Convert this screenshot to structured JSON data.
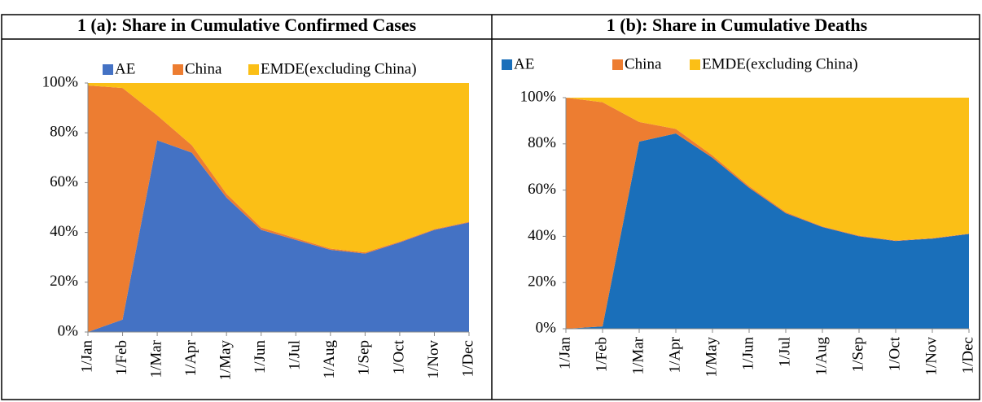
{
  "chart_data": [
    {
      "type": "area",
      "stacked": true,
      "title": "1 (a): Share in Cumulative Confirmed Cases",
      "categories": [
        "1/Jan",
        "1/Feb",
        "1/Mar",
        "1/Apr",
        "1/May",
        "1/Jun",
        "1/Jul",
        "1/Aug",
        "1/Sep",
        "1/Oct",
        "1/Nov",
        "1/Dec"
      ],
      "series": [
        {
          "name": "AE",
          "color": "#4472c4",
          "values": [
            0,
            5,
            77,
            72,
            54,
            41,
            37,
            33,
            31.5,
            36,
            41,
            44
          ]
        },
        {
          "name": "China",
          "color": "#ed7d31",
          "values": [
            99,
            93,
            10,
            3,
            1.5,
            1,
            0.7,
            0.5,
            0.5,
            0.3,
            0.3,
            0.3
          ]
        },
        {
          "name": "EMDE(excluding China)",
          "color": "#fbbf16",
          "values": [
            1,
            2,
            13,
            25,
            44.5,
            58,
            62.3,
            66.5,
            68,
            63.7,
            58.7,
            55.7
          ]
        }
      ],
      "ylim": [
        0,
        100
      ],
      "yticks": [
        {
          "value": 0,
          "label": "0%"
        },
        {
          "value": 20,
          "label": "20%"
        },
        {
          "value": 40,
          "label": "40%"
        },
        {
          "value": 60,
          "label": "60%"
        },
        {
          "value": 80,
          "label": "80%"
        },
        {
          "value": 100,
          "label": "100%"
        }
      ],
      "legend": "top"
    },
    {
      "type": "area",
      "stacked": true,
      "title": "1 (b): Share in Cumulative Deaths",
      "categories": [
        "1/Jan",
        "1/Feb",
        "1/Mar",
        "1/Apr",
        "1/May",
        "1/Jun",
        "1/Jul",
        "1/Aug",
        "1/Sep",
        "1/Oct",
        "1/Nov",
        "1/Dec"
      ],
      "series": [
        {
          "name": "AE",
          "color": "#1a6fba",
          "values": [
            0,
            1,
            81,
            84.5,
            74,
            61,
            50,
            44,
            40,
            38,
            39,
            41
          ]
        },
        {
          "name": "China",
          "color": "#ed7d31",
          "values": [
            100,
            97,
            8.5,
            2,
            1,
            0.7,
            0.5,
            0.3,
            0.3,
            0.2,
            0.2,
            0.2
          ]
        },
        {
          "name": "EMDE(excluding China)",
          "color": "#fbbf16",
          "values": [
            0,
            2,
            10.5,
            13.5,
            25,
            38.3,
            49.5,
            55.7,
            59.7,
            61.8,
            60.8,
            58.8
          ]
        }
      ],
      "ylim": [
        0,
        100
      ],
      "yticks": [
        {
          "value": 0,
          "label": "0%"
        },
        {
          "value": 20,
          "label": "20%"
        },
        {
          "value": 40,
          "label": "40%"
        },
        {
          "value": 60,
          "label": "60%"
        },
        {
          "value": 80,
          "label": "80%"
        },
        {
          "value": 100,
          "label": "100%"
        }
      ],
      "legend": "top"
    }
  ]
}
